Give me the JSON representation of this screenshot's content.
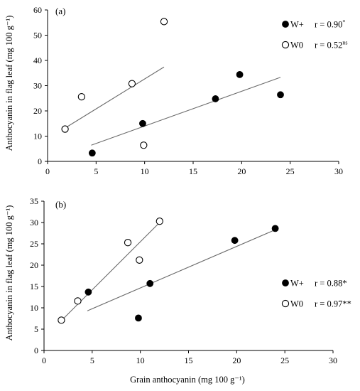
{
  "chart_data": [
    {
      "panel_label": "(a)",
      "type": "scatter",
      "xlim": [
        0,
        30
      ],
      "ylim": [
        0,
        60
      ],
      "x_ticks": [
        0,
        5,
        10,
        15,
        20,
        25,
        30
      ],
      "y_ticks": [
        0,
        10,
        20,
        30,
        40,
        50,
        60
      ],
      "xlabel": "",
      "ylabel": "Anthocyanin in flag leaf (mg 100 g⁻¹)",
      "grid": false,
      "legend_position": "top-right",
      "series": [
        {
          "name": "W+",
          "marker": "filled-circle",
          "stat": "r = 0.90",
          "stat_sup": "*",
          "x": [
            4.6,
            9.8,
            17.3,
            19.8,
            24.0
          ],
          "y": [
            3.3,
            15.0,
            24.8,
            34.4,
            26.4
          ],
          "trend": [
            [
              4.5,
              6.4
            ],
            [
              24.0,
              33.3
            ]
          ]
        },
        {
          "name": "W0",
          "marker": "open-circle",
          "stat": "r = 0.52",
          "stat_sup": "ns",
          "x": [
            1.8,
            3.5,
            8.7,
            9.9,
            12.0
          ],
          "y": [
            12.8,
            25.6,
            30.8,
            6.4,
            55.4
          ],
          "trend": [
            [
              1.8,
              13.2
            ],
            [
              12.0,
              37.4
            ]
          ]
        }
      ]
    },
    {
      "panel_label": "(b)",
      "type": "scatter",
      "xlim": [
        0,
        30
      ],
      "ylim": [
        0,
        35
      ],
      "x_ticks": [
        0,
        5,
        10,
        15,
        20,
        25,
        30
      ],
      "y_ticks": [
        0,
        5,
        10,
        15,
        20,
        25,
        30,
        35
      ],
      "xlabel": "Grain anthocyanin (mg 100 g⁻¹)",
      "ylabel": "Anthocyanin in flag leaf (mg 100 g⁻¹)",
      "grid": false,
      "legend_position": "bottom-right",
      "series": [
        {
          "name": "W+",
          "marker": "filled-circle",
          "stat": "r = 0.88*",
          "stat_sup": "",
          "x": [
            4.6,
            9.8,
            11.0,
            19.8,
            24.0
          ],
          "y": [
            13.7,
            7.6,
            15.7,
            25.8,
            28.6
          ],
          "trend": [
            [
              4.5,
              9.3
            ],
            [
              24.0,
              28.3
            ]
          ]
        },
        {
          "name": "W0",
          "marker": "open-circle",
          "stat": "r = 0.97**",
          "stat_sup": "",
          "x": [
            1.8,
            3.5,
            8.7,
            9.9,
            12.0
          ],
          "y": [
            7.1,
            11.6,
            25.3,
            21.2,
            30.3
          ],
          "trend": [
            [
              1.8,
              7.0
            ],
            [
              12.0,
              30.0
            ]
          ]
        }
      ]
    }
  ]
}
